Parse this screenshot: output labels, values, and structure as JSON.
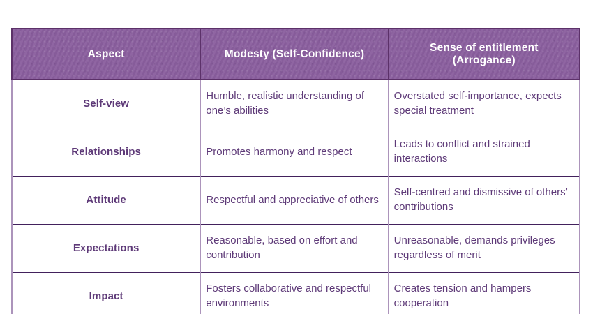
{
  "colors": {
    "page_bg": "#ffffff",
    "header_bg": "#8a5f9e",
    "header_outline": "#5c3169",
    "header_text": "#ffffff",
    "body_text": "#5e3a78",
    "border_dark": "#42215c",
    "border_light": "#ac94bb",
    "cell_bg": "#ffffff"
  },
  "chart_data": {
    "type": "table",
    "columns": [
      "Aspect",
      "Modesty (Self-Confidence)",
      "Sense of entitlement (Arrogance)"
    ],
    "rows": [
      [
        "Self-view",
        "Humble, realistic understanding of one’s abilities",
        "Overstated self-importance, expects special treatment"
      ],
      [
        "Relationships",
        "Promotes harmony and respect",
        "Leads to conflict and strained interactions"
      ],
      [
        "Attitude",
        "Respectful and appreciative of others",
        "Self-centred and dismissive of others’ contributions"
      ],
      [
        "Expectations",
        "Reasonable, based on effort and contribution",
        "Unreasonable, demands privileges regardless of merit"
      ],
      [
        "Impact",
        "Fosters collaborative and respectful environments",
        "Creates tension and hampers cooperation"
      ]
    ]
  }
}
